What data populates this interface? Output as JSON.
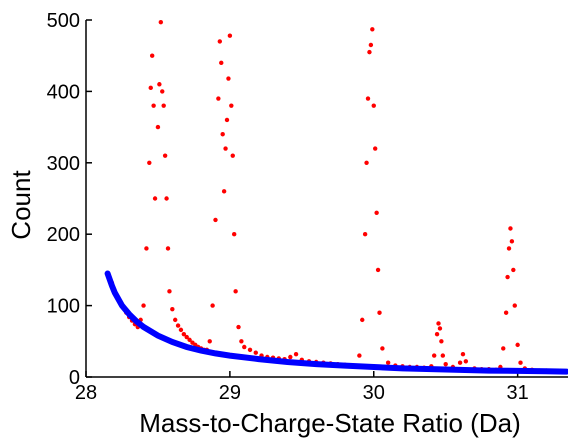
{
  "chart_data": {
    "type": "scatter",
    "title": "",
    "xlabel": "Mass-to-Charge-State Ratio (Da)",
    "ylabel": "Count",
    "xlim": [
      28.0,
      31.35
    ],
    "ylim": [
      0,
      500
    ],
    "x_ticks": [
      "28",
      "29",
      "30",
      "31"
    ],
    "y_ticks": [
      "0",
      "100",
      "200",
      "300",
      "400",
      "500"
    ],
    "grid": false,
    "legend": "none",
    "series": [
      {
        "marker": "dot",
        "color": "#ff0000",
        "points": [
          [
            28.16,
            140
          ],
          [
            28.18,
            132
          ],
          [
            28.2,
            120
          ],
          [
            28.22,
            112
          ],
          [
            28.24,
            104
          ],
          [
            28.26,
            97
          ],
          [
            28.28,
            90
          ],
          [
            28.3,
            84
          ],
          [
            28.32,
            79
          ],
          [
            28.34,
            74
          ],
          [
            28.36,
            70
          ],
          [
            28.38,
            80
          ],
          [
            28.4,
            100
          ],
          [
            28.42,
            180
          ],
          [
            28.44,
            300
          ],
          [
            28.45,
            405
          ],
          [
            28.46,
            450
          ],
          [
            28.47,
            380
          ],
          [
            28.48,
            250
          ],
          [
            28.5,
            350
          ],
          [
            28.51,
            410
          ],
          [
            28.52,
            497
          ],
          [
            28.53,
            400
          ],
          [
            28.54,
            380
          ],
          [
            28.55,
            310
          ],
          [
            28.56,
            250
          ],
          [
            28.57,
            180
          ],
          [
            28.58,
            120
          ],
          [
            28.6,
            95
          ],
          [
            28.62,
            80
          ],
          [
            28.64,
            72
          ],
          [
            28.66,
            66
          ],
          [
            28.68,
            60
          ],
          [
            28.7,
            56
          ],
          [
            28.72,
            52
          ],
          [
            28.74,
            48
          ],
          [
            28.76,
            45
          ],
          [
            28.78,
            42
          ],
          [
            28.8,
            40
          ],
          [
            28.82,
            38
          ],
          [
            28.84,
            38
          ],
          [
            28.86,
            50
          ],
          [
            28.88,
            100
          ],
          [
            28.9,
            220
          ],
          [
            28.92,
            390
          ],
          [
            28.93,
            470
          ],
          [
            28.94,
            440
          ],
          [
            28.95,
            340
          ],
          [
            28.96,
            260
          ],
          [
            28.97,
            320
          ],
          [
            28.98,
            360
          ],
          [
            28.99,
            418
          ],
          [
            29.0,
            478
          ],
          [
            29.01,
            380
          ],
          [
            29.02,
            310
          ],
          [
            29.03,
            200
          ],
          [
            29.04,
            120
          ],
          [
            29.06,
            70
          ],
          [
            29.08,
            50
          ],
          [
            29.1,
            42
          ],
          [
            29.14,
            38
          ],
          [
            29.18,
            34
          ],
          [
            29.22,
            30
          ],
          [
            29.26,
            28
          ],
          [
            29.3,
            27
          ],
          [
            29.34,
            26
          ],
          [
            29.38,
            25
          ],
          [
            29.42,
            28
          ],
          [
            29.46,
            32
          ],
          [
            29.5,
            24
          ],
          [
            29.55,
            22
          ],
          [
            29.6,
            21
          ],
          [
            29.65,
            20
          ],
          [
            29.7,
            19
          ],
          [
            29.75,
            18
          ],
          [
            29.8,
            17
          ],
          [
            29.85,
            16
          ],
          [
            29.9,
            30
          ],
          [
            29.92,
            80
          ],
          [
            29.94,
            200
          ],
          [
            29.95,
            300
          ],
          [
            29.96,
            390
          ],
          [
            29.97,
            455
          ],
          [
            29.98,
            465
          ],
          [
            29.99,
            487
          ],
          [
            30.0,
            380
          ],
          [
            30.01,
            320
          ],
          [
            30.02,
            230
          ],
          [
            30.03,
            150
          ],
          [
            30.04,
            90
          ],
          [
            30.06,
            40
          ],
          [
            30.1,
            20
          ],
          [
            30.15,
            16
          ],
          [
            30.2,
            15
          ],
          [
            30.25,
            14
          ],
          [
            30.3,
            14
          ],
          [
            30.35,
            13
          ],
          [
            30.4,
            15
          ],
          [
            30.42,
            30
          ],
          [
            30.44,
            60
          ],
          [
            30.45,
            75
          ],
          [
            30.46,
            68
          ],
          [
            30.47,
            50
          ],
          [
            30.48,
            30
          ],
          [
            30.5,
            18
          ],
          [
            30.55,
            14
          ],
          [
            30.6,
            20
          ],
          [
            30.62,
            32
          ],
          [
            30.64,
            22
          ],
          [
            30.7,
            12
          ],
          [
            30.75,
            11
          ],
          [
            30.8,
            11
          ],
          [
            30.85,
            10
          ],
          [
            30.88,
            14
          ],
          [
            30.9,
            40
          ],
          [
            30.92,
            90
          ],
          [
            30.93,
            140
          ],
          [
            30.94,
            180
          ],
          [
            30.95,
            208
          ],
          [
            30.96,
            190
          ],
          [
            30.97,
            150
          ],
          [
            30.98,
            100
          ],
          [
            31.0,
            45
          ],
          [
            31.02,
            20
          ],
          [
            31.05,
            12
          ],
          [
            31.1,
            10
          ],
          [
            31.15,
            9
          ],
          [
            31.2,
            9
          ],
          [
            31.25,
            8
          ],
          [
            31.3,
            8
          ],
          [
            31.34,
            8
          ]
        ]
      },
      {
        "marker": "line",
        "color": "#0000ff",
        "points": [
          [
            28.15,
            145
          ],
          [
            28.18,
            128
          ],
          [
            28.2,
            118
          ],
          [
            28.25,
            100
          ],
          [
            28.3,
            88
          ],
          [
            28.35,
            78
          ],
          [
            28.4,
            70
          ],
          [
            28.5,
            58
          ],
          [
            28.6,
            49
          ],
          [
            28.7,
            42
          ],
          [
            28.8,
            37
          ],
          [
            28.9,
            33
          ],
          [
            29.0,
            30
          ],
          [
            29.2,
            25
          ],
          [
            29.4,
            21
          ],
          [
            29.6,
            18
          ],
          [
            29.8,
            16
          ],
          [
            30.0,
            14
          ],
          [
            30.2,
            12
          ],
          [
            30.4,
            11
          ],
          [
            30.6,
            10
          ],
          [
            30.8,
            9
          ],
          [
            31.0,
            8.5
          ],
          [
            31.2,
            8
          ],
          [
            31.34,
            7.5
          ]
        ]
      }
    ]
  }
}
